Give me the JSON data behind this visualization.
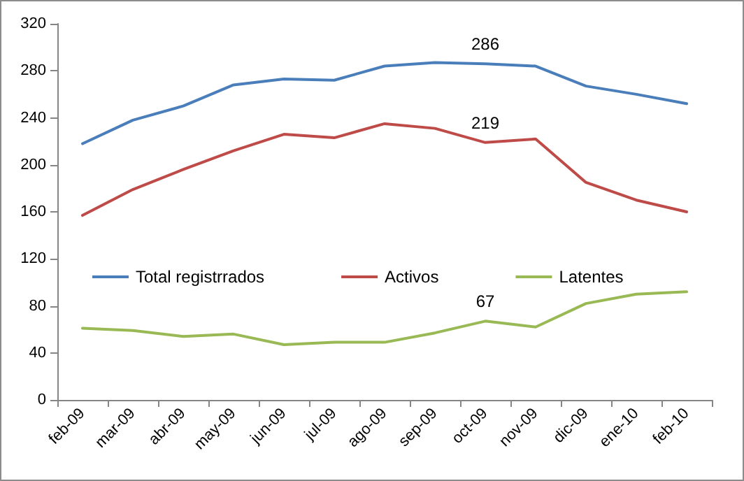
{
  "chart_data": {
    "type": "line",
    "categories": [
      "feb-09",
      "mar-09",
      "abr-09",
      "may-09",
      "jun-09",
      "jul-09",
      "ago-09",
      "sep-09",
      "oct-09",
      "nov-09",
      "dic-09",
      "ene-10",
      "feb-10"
    ],
    "series": [
      {
        "name": "Total registrrados",
        "color": "#4a7ebb",
        "values": [
          218,
          238,
          250,
          268,
          273,
          272,
          284,
          287,
          286,
          284,
          267,
          260,
          252
        ],
        "value_labels": [
          null,
          null,
          null,
          null,
          null,
          null,
          null,
          null,
          "286",
          null,
          null,
          null,
          null
        ]
      },
      {
        "name": "Activos",
        "color": "#be4b48",
        "values": [
          157,
          179,
          196,
          212,
          226,
          223,
          235,
          231,
          219,
          222,
          185,
          170,
          160
        ],
        "value_labels": [
          null,
          null,
          null,
          null,
          null,
          null,
          null,
          null,
          "219",
          null,
          null,
          null,
          null
        ]
      },
      {
        "name": "Latentes",
        "color": "#98b954",
        "values": [
          61,
          59,
          54,
          56,
          47,
          49,
          49,
          57,
          67,
          62,
          82,
          90,
          92
        ],
        "value_labels": [
          null,
          null,
          null,
          null,
          null,
          null,
          null,
          null,
          "67",
          null,
          null,
          null,
          null
        ]
      }
    ],
    "ylim": [
      0,
      320
    ],
    "yticks": [
      0,
      40,
      80,
      120,
      160,
      200,
      240,
      280,
      320
    ],
    "grid": false,
    "legend": "left",
    "marker": "none",
    "line_style": "solid"
  }
}
